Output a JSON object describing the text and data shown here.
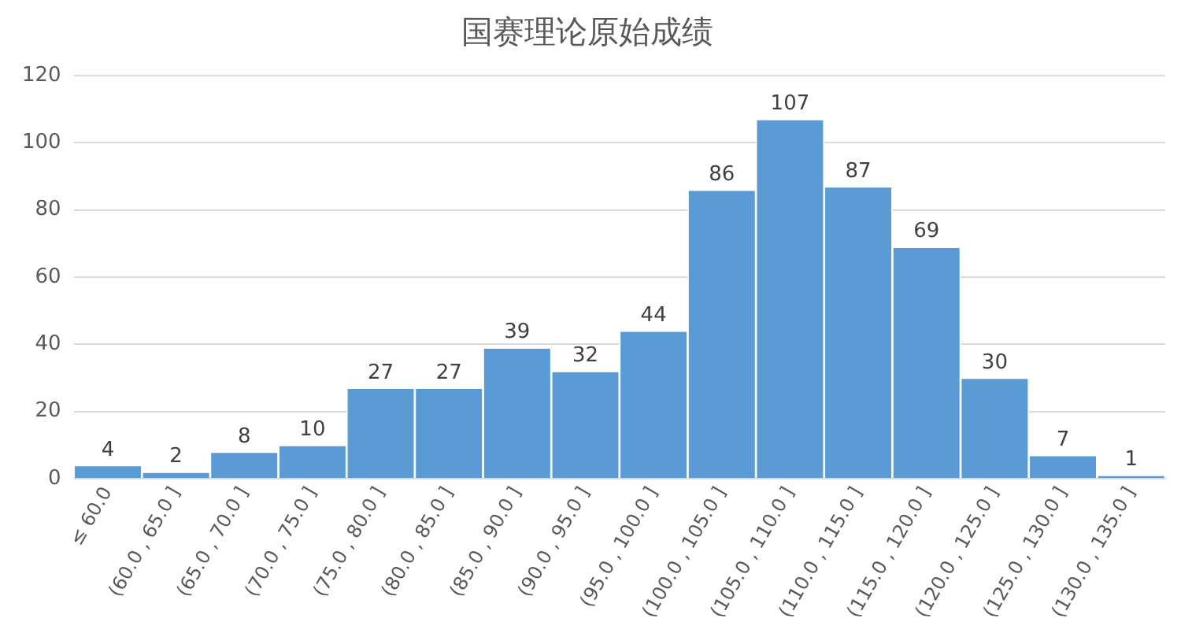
{
  "chart_data": {
    "type": "bar",
    "title": "国赛理论原始成绩",
    "categories": [
      "≤ 60.0",
      "(60.0 , 65.0 ]",
      "(65.0 , 70.0 ]",
      "(70.0 , 75.0 ]",
      "(75.0 , 80.0 ]",
      "(80.0 , 85.0 ]",
      "(85.0 , 90.0 ]",
      "(90.0 , 95.0 ]",
      "(95.0 , 100.0 ]",
      "(100.0 , 105.0 ]",
      "(105.0 , 110.0 ]",
      "(110.0 , 115.0 ]",
      "(115.0 , 120.0 ]",
      "(120.0 , 125.0 ]",
      "(125.0 , 130.0 ]",
      "(130.0 , 135.0 ]"
    ],
    "values": [
      4,
      2,
      8,
      10,
      27,
      27,
      39,
      32,
      44,
      86,
      107,
      87,
      69,
      30,
      7,
      1
    ],
    "color": "#5b9bd5",
    "ylim": [
      0,
      120
    ],
    "yticks": [
      0,
      20,
      40,
      60,
      80,
      100,
      120
    ],
    "grid": "y",
    "data_labels": true
  }
}
